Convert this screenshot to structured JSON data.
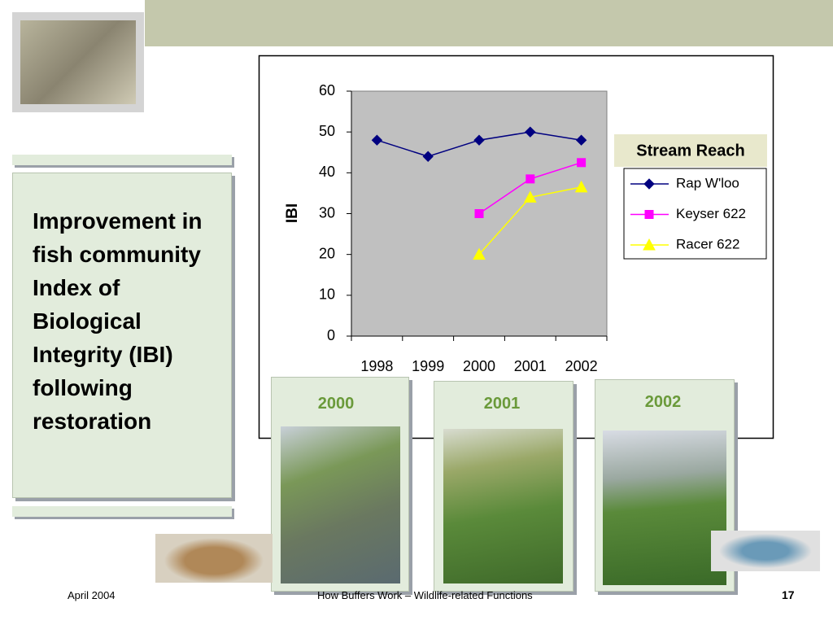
{
  "slide_title": "Improvement in fish community Index of Biological Integrity (IBI) following restoration",
  "photo_captions": [
    "2000",
    "2001",
    "2002"
  ],
  "footer": {
    "date": "April 2004",
    "center": "How Buffers Work – Wildlife-related Functions",
    "page": "17"
  },
  "chart_data": {
    "type": "line",
    "ylabel": "IBI",
    "legend_title": "Stream Reach",
    "categories": [
      "1998",
      "1999",
      "2000",
      "2001",
      "2002"
    ],
    "ylim": [
      0,
      60
    ],
    "yticks": [
      0,
      10,
      20,
      30,
      40,
      50,
      60
    ],
    "series": [
      {
        "name": "Rap W'loo",
        "color": "#000080",
        "marker": "diamond",
        "values": [
          48,
          44,
          48,
          50,
          48
        ]
      },
      {
        "name": "Keyser 622",
        "color": "#ff00ff",
        "marker": "square",
        "values": [
          null,
          null,
          30,
          38.5,
          42.5
        ]
      },
      {
        "name": "Racer 622",
        "color": "#ffff00",
        "marker": "triangle",
        "values": [
          null,
          null,
          20,
          34,
          36.5
        ]
      }
    ]
  }
}
